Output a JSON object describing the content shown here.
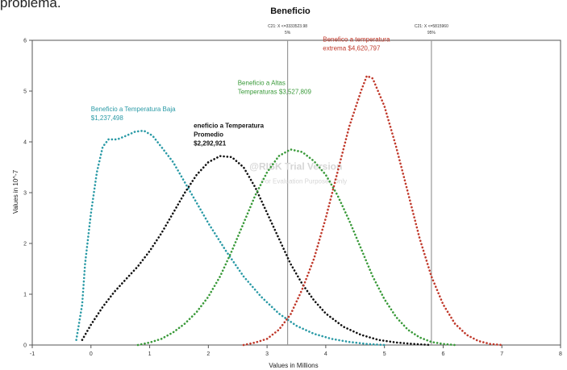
{
  "page": {
    "top_text": "problema."
  },
  "chart_data": {
    "type": "line",
    "title": "Beneficio",
    "xlabel": "Values in Millions",
    "ylabel": "Values in 10^-7",
    "xlim": [
      -1,
      8
    ],
    "ylim": [
      0,
      6
    ],
    "x_ticks": [
      "-1",
      "0",
      "1",
      "2",
      "3",
      "4",
      "5",
      "6",
      "7",
      "8"
    ],
    "y_ticks": [
      "0",
      "1",
      "2",
      "3",
      "4",
      "5",
      "6"
    ],
    "grid": false,
    "watermark": [
      "@RISK Trial Version",
      "For Evaluation Purposes Only"
    ],
    "markers": [
      {
        "label": "C21: X <=3333523.98",
        "pct": "5%",
        "x": 3.35
      },
      {
        "label": "C21: X <=5815960",
        "pct": "95%",
        "x": 5.8
      }
    ],
    "series": [
      {
        "name": "Beneficio a Temperatura Baja",
        "value_label": "$1,237,498",
        "color": "#2a9aa6",
        "x": [
          -0.25,
          -0.15,
          -0.1,
          0,
          0.1,
          0.2,
          0.3,
          0.45,
          0.6,
          0.75,
          0.9,
          1.05,
          1.2,
          1.4,
          1.6,
          1.8,
          2.0,
          2.3,
          2.6,
          2.9,
          3.2,
          3.5,
          3.8,
          4.1,
          4.4,
          4.7,
          5.0
        ],
        "y": [
          0.1,
          0.8,
          1.6,
          2.6,
          3.4,
          3.9,
          4.05,
          4.05,
          4.12,
          4.2,
          4.22,
          4.12,
          3.9,
          3.6,
          3.2,
          2.8,
          2.4,
          1.85,
          1.35,
          0.95,
          0.62,
          0.38,
          0.22,
          0.12,
          0.06,
          0.02,
          0.0
        ]
      },
      {
        "name": "Beneficio a Temperatura Promedio",
        "value_label": "$2,292,921",
        "color": "#111111",
        "x": [
          -0.15,
          0,
          0.2,
          0.4,
          0.6,
          0.8,
          1.0,
          1.2,
          1.4,
          1.6,
          1.8,
          2.0,
          2.2,
          2.4,
          2.6,
          2.8,
          3.0,
          3.2,
          3.4,
          3.6,
          3.8,
          4.0,
          4.3,
          4.6,
          4.9,
          5.2,
          5.5,
          5.8
        ],
        "y": [
          0.1,
          0.4,
          0.75,
          1.05,
          1.3,
          1.55,
          1.85,
          2.2,
          2.6,
          3.0,
          3.35,
          3.6,
          3.72,
          3.7,
          3.5,
          3.1,
          2.6,
          2.1,
          1.6,
          1.2,
          0.88,
          0.62,
          0.36,
          0.2,
          0.1,
          0.05,
          0.02,
          0.0
        ]
      },
      {
        "name": "Beneficio a Altas Temperaturas",
        "value_label": "$3,527,809",
        "color": "#3a9a3a",
        "x": [
          0.8,
          1.0,
          1.2,
          1.4,
          1.6,
          1.8,
          2.0,
          2.2,
          2.4,
          2.6,
          2.8,
          3.0,
          3.2,
          3.4,
          3.6,
          3.8,
          4.0,
          4.2,
          4.4,
          4.6,
          4.8,
          5.0,
          5.2,
          5.4,
          5.6,
          5.8,
          6.0,
          6.2
        ],
        "y": [
          0.0,
          0.05,
          0.12,
          0.25,
          0.42,
          0.65,
          0.95,
          1.35,
          1.85,
          2.4,
          2.95,
          3.4,
          3.72,
          3.85,
          3.8,
          3.62,
          3.35,
          2.95,
          2.45,
          1.9,
          1.35,
          0.9,
          0.55,
          0.3,
          0.15,
          0.06,
          0.02,
          0.0
        ]
      },
      {
        "name": "Beneficio a temperatura extrema",
        "value_label": "$4,620,797",
        "color": "#c0392b",
        "x": [
          2.6,
          2.8,
          3.0,
          3.2,
          3.4,
          3.6,
          3.8,
          4.0,
          4.2,
          4.4,
          4.6,
          4.7,
          4.8,
          5.0,
          5.2,
          5.4,
          5.6,
          5.8,
          6.0,
          6.2,
          6.4,
          6.6,
          6.8,
          7.0
        ],
        "y": [
          0.0,
          0.05,
          0.12,
          0.3,
          0.6,
          1.1,
          1.7,
          2.5,
          3.4,
          4.3,
          5.0,
          5.3,
          5.25,
          4.7,
          3.9,
          3.0,
          2.1,
          1.35,
          0.8,
          0.42,
          0.2,
          0.08,
          0.02,
          0.0
        ]
      }
    ],
    "annotations": [
      {
        "text": [
          "Beneficio a Temperatura Baja",
          "$1,237,498"
        ],
        "color": "#2a9aa6",
        "x": 0.0,
        "y": 4.6,
        "bold": false
      },
      {
        "text": [
          "eneficio a Temperatura",
          "Promedio",
          "$2,292,921"
        ],
        "color": "#111111",
        "x": 1.75,
        "y": 4.28,
        "bold": true
      },
      {
        "text": [
          "Beneficio a Altas",
          "Temperaturas $3,527,809"
        ],
        "color": "#3a9a3a",
        "x": 2.5,
        "y": 5.12,
        "bold": false
      },
      {
        "text": [
          "Benefico a temperatura",
          "extrema $4,620,797"
        ],
        "color": "#c0392b",
        "x": 3.95,
        "y": 5.98,
        "bold": false
      }
    ]
  }
}
